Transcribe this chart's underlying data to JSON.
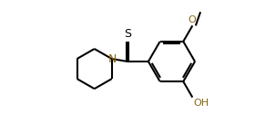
{
  "bg_color": "#ffffff",
  "line_color": "#000000",
  "n_color": "#8B6914",
  "o_color": "#8B6914",
  "lw": 1.5,
  "figsize": [
    2.8,
    1.36
  ],
  "dpi": 100,
  "xlim": [
    0,
    10
  ],
  "ylim": [
    0,
    5
  ]
}
